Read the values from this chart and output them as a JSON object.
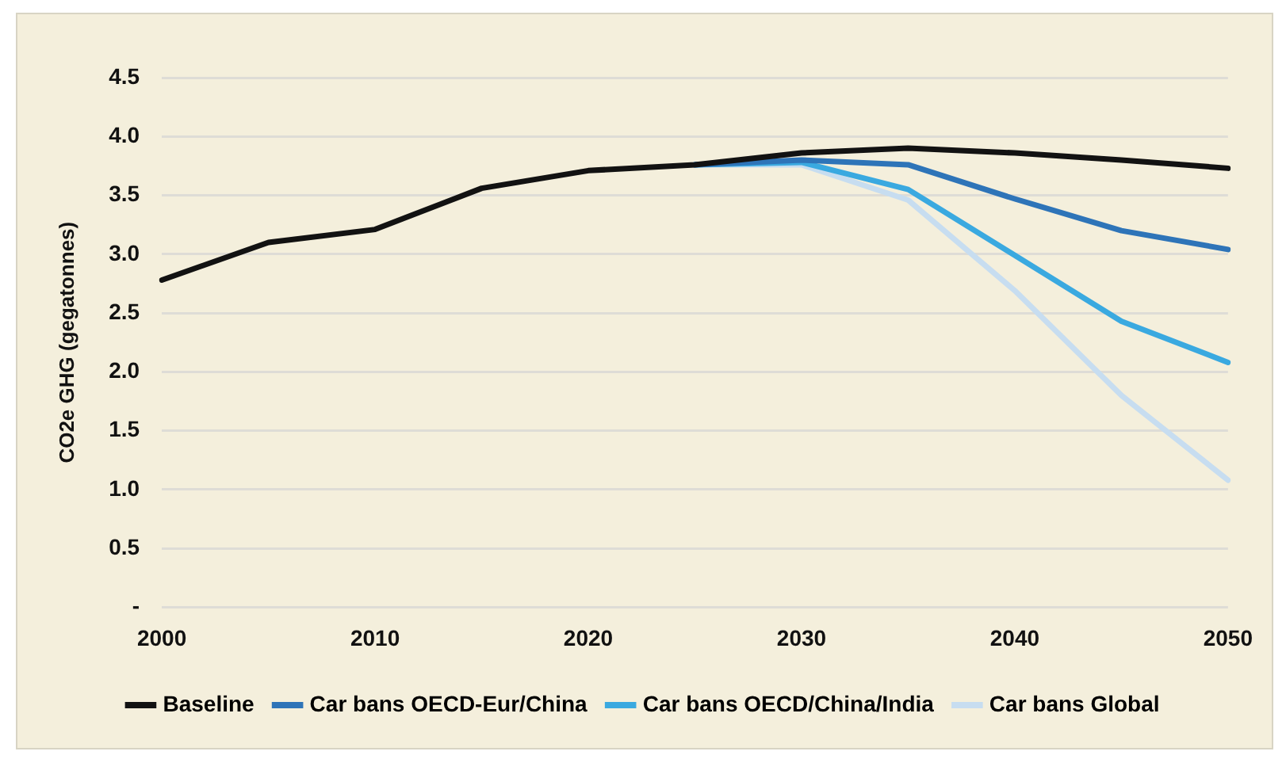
{
  "chart_data": {
    "type": "line",
    "ylabel": "CO2e GHG (gegatonnes)",
    "categories": [
      "2000",
      null,
      "2010",
      null,
      "2020",
      null,
      "2030",
      null,
      "2040",
      null,
      "2050"
    ],
    "series": [
      {
        "name": "Baseline",
        "color": "#121212",
        "values": [
          2.78,
          3.1,
          3.21,
          3.56,
          3.71,
          3.76,
          3.86,
          3.9,
          3.86,
          3.8,
          3.73
        ]
      },
      {
        "name": "Car bans OECD-Eur/China",
        "color": "#2e74b8",
        "values": [
          null,
          null,
          null,
          null,
          null,
          3.76,
          3.8,
          3.76,
          3.47,
          3.2,
          3.04
        ]
      },
      {
        "name": "Car bans OECD/China/India",
        "color": "#3aa9e0",
        "values": [
          null,
          null,
          null,
          null,
          null,
          3.76,
          3.78,
          3.55,
          2.99,
          2.43,
          2.08
        ]
      },
      {
        "name": "Car bans Global",
        "color": "#c7ddf0",
        "values": [
          null,
          null,
          null,
          null,
          null,
          3.76,
          3.76,
          3.46,
          2.69,
          1.8,
          1.08
        ]
      }
    ],
    "ylim": [
      0,
      4.5
    ],
    "yticks": [
      {
        "value": 0,
        "label": "-"
      },
      0.5,
      {
        "value": 1,
        "label": "1.0"
      },
      1.5,
      {
        "value": 2,
        "label": "2.0"
      },
      2.5,
      {
        "value": 3,
        "label": "3.0"
      },
      3.5,
      {
        "value": 4,
        "label": "4.0"
      },
      4.5
    ],
    "grid": "y",
    "legend": "bottom",
    "marker": "none",
    "line_style": "solid"
  }
}
